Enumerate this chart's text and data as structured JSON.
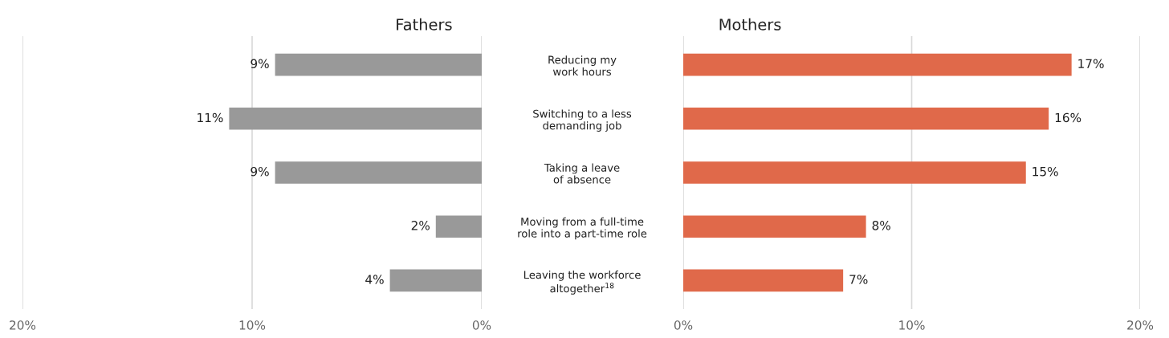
{
  "chart_data": [
    {
      "type": "bar",
      "orientation": "horizontal",
      "title": "Fathers",
      "categories": [
        null,
        null,
        null,
        null,
        null
      ],
      "values": [
        9,
        11,
        9,
        2,
        4
      ],
      "color": "#999999",
      "value_labels": [
        "9%",
        "11%",
        "9%",
        "2%",
        "4%"
      ],
      "xlim": [
        20,
        0
      ],
      "xticks": [
        {
          "value": 20,
          "label": "20%"
        },
        {
          "value": 10,
          "label": "10%"
        },
        {
          "value": 0,
          "label": "0%"
        }
      ],
      "grid": "x",
      "tick_labels": "x"
    },
    {
      "type": "bar",
      "orientation": "horizontal",
      "title": "Mothers",
      "categories": [
        "Reducing my\nwork hours",
        "Switching to a less\ndemanding job",
        "Taking a leave\nof absence",
        "Moving from a full-time\nrole into a part-time role",
        "Leaving the workforce\naltogether$^{18}$"
      ],
      "values": [
        17,
        16,
        15,
        8,
        7
      ],
      "color": "#e0694a",
      "value_labels": [
        "17%",
        "16%",
        "15%",
        "8%",
        "7%"
      ],
      "xlim": [
        0,
        20
      ],
      "xticks": [
        {
          "value": 0,
          "label": "0%"
        },
        {
          "value": 10,
          "label": "10%"
        },
        {
          "value": 20,
          "label": "20%"
        }
      ],
      "grid": "x"
    }
  ]
}
